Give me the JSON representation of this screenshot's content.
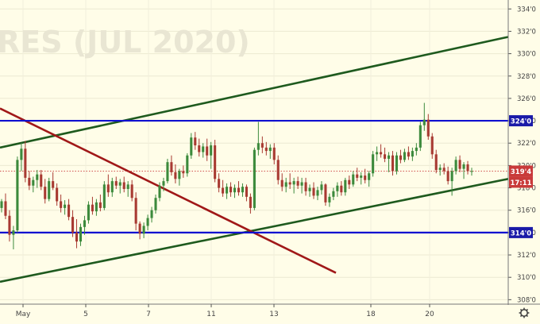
{
  "watermark": "RES (JUL 2020)",
  "price_axis": {
    "ticks": [
      "334'0",
      "332'0",
      "330'0",
      "328'0",
      "326'0",
      "324'0",
      "322'0",
      "320'0",
      "318'0",
      "316'0",
      "314'0",
      "312'0",
      "310'0",
      "308'0"
    ],
    "badges": {
      "resistance": "324'0",
      "last_price": "319'4",
      "countdown": "17:11",
      "support": "314'0"
    }
  },
  "time_axis": {
    "ticks": [
      "May",
      "5",
      "7",
      "11",
      "13",
      "18",
      "20"
    ]
  },
  "colors": {
    "background": "#fffde8",
    "up_candle": "#3c8a3c",
    "down_candle": "#a83a32",
    "horizontal_level": "#1010d0",
    "channel_line": "#1e5a1e",
    "downtrend_line": "#a01818",
    "last_price_badge": "#c93a3a",
    "level_badge": "#1a1aa8"
  },
  "chart_data": {
    "type": "candlestick",
    "title": "RES (JUL 2020)",
    "ylim": [
      307.6,
      334.8
    ],
    "x": [
      "May",
      "5",
      "7",
      "11",
      "13",
      "18",
      "20"
    ],
    "horizontal_levels": [
      324.0,
      314.0
    ],
    "last_price": 319.5,
    "trend_lines": [
      {
        "name": "channel-upper",
        "from": [
          "before May",
          321.6
        ],
        "to": [
          "after 20",
          331.5
        ]
      },
      {
        "name": "channel-lower",
        "from": [
          "before May",
          309.6
        ],
        "to": [
          "after 20",
          318.8
        ]
      },
      {
        "name": "downtrend",
        "from": [
          "before May",
          325.1
        ],
        "to": [
          "between 18 and 13",
          310.4
        ]
      }
    ],
    "candles": [
      [
        316.2,
        317.0,
        315.8,
        316.8
      ],
      [
        316.8,
        317.5,
        315.2,
        315.5
      ],
      [
        315.5,
        316.0,
        313.2,
        313.8
      ],
      [
        313.8,
        314.6,
        312.5,
        314.2
      ],
      [
        314.2,
        320.8,
        314.0,
        320.5
      ],
      [
        320.5,
        322.0,
        319.5,
        321.5
      ],
      [
        321.5,
        322.2,
        318.5,
        318.9
      ],
      [
        318.9,
        319.5,
        317.8,
        318.2
      ],
      [
        318.2,
        319.0,
        317.6,
        318.7
      ],
      [
        318.7,
        319.6,
        318.0,
        319.2
      ],
      [
        319.2,
        319.6,
        317.8,
        318.1
      ],
      [
        318.1,
        318.8,
        316.6,
        317.0
      ],
      [
        317.0,
        318.9,
        316.8,
        318.6
      ],
      [
        318.6,
        319.4,
        317.8,
        318.0
      ],
      [
        318.0,
        318.4,
        316.4,
        316.8
      ],
      [
        316.8,
        317.4,
        315.8,
        316.2
      ],
      [
        316.2,
        316.9,
        315.6,
        316.5
      ],
      [
        316.5,
        317.0,
        315.1,
        315.4
      ],
      [
        315.4,
        316.0,
        313.6,
        314.0
      ],
      [
        314.0,
        315.2,
        312.6,
        313.2
      ],
      [
        313.2,
        314.8,
        312.8,
        314.5
      ],
      [
        314.5,
        315.5,
        313.8,
        315.1
      ],
      [
        315.1,
        316.8,
        314.8,
        316.5
      ],
      [
        316.5,
        317.2,
        315.6,
        315.9
      ],
      [
        315.9,
        317.0,
        315.5,
        316.7
      ],
      [
        316.7,
        317.4,
        315.9,
        316.2
      ],
      [
        316.2,
        318.6,
        316.0,
        318.3
      ],
      [
        318.3,
        319.2,
        317.2,
        317.6
      ],
      [
        317.6,
        318.9,
        317.2,
        318.6
      ],
      [
        318.6,
        319.0,
        317.9,
        318.2
      ],
      [
        318.2,
        318.8,
        317.5,
        318.5
      ],
      [
        318.5,
        319.0,
        317.6,
        317.9
      ],
      [
        317.9,
        318.6,
        317.2,
        318.3
      ],
      [
        318.3,
        318.7,
        316.8,
        317.1
      ],
      [
        317.1,
        317.6,
        314.2,
        314.8
      ],
      [
        314.8,
        315.0,
        313.4,
        313.9
      ],
      [
        313.9,
        314.9,
        313.5,
        314.6
      ],
      [
        314.6,
        315.6,
        314.2,
        315.3
      ],
      [
        315.3,
        316.3,
        314.9,
        316.0
      ],
      [
        316.0,
        317.4,
        315.7,
        317.1
      ],
      [
        317.1,
        318.5,
        316.8,
        318.2
      ],
      [
        318.2,
        318.9,
        317.7,
        318.6
      ],
      [
        318.6,
        320.6,
        318.4,
        320.3
      ],
      [
        320.3,
        320.9,
        319.1,
        319.4
      ],
      [
        319.4,
        320.1,
        318.4,
        318.8
      ],
      [
        318.8,
        319.7,
        318.2,
        319.5
      ],
      [
        319.5,
        320.0,
        318.9,
        319.3
      ],
      [
        319.3,
        321.1,
        319.0,
        320.9
      ],
      [
        320.9,
        322.9,
        320.6,
        322.5
      ],
      [
        322.5,
        323.0,
        321.4,
        321.8
      ],
      [
        321.8,
        322.4,
        320.8,
        321.2
      ],
      [
        321.2,
        322.0,
        320.7,
        321.7
      ],
      [
        321.7,
        322.4,
        320.4,
        320.9
      ],
      [
        320.9,
        322.1,
        319.7,
        321.8
      ],
      [
        321.8,
        322.3,
        318.5,
        318.8
      ],
      [
        318.8,
        319.3,
        317.6,
        318.0
      ],
      [
        318.0,
        318.7,
        317.2,
        317.5
      ],
      [
        317.5,
        318.4,
        317.0,
        318.1
      ],
      [
        318.1,
        318.5,
        317.2,
        317.6
      ],
      [
        317.6,
        318.3,
        317.1,
        318.0
      ],
      [
        318.0,
        318.6,
        317.3,
        317.6
      ],
      [
        317.6,
        318.4,
        317.2,
        318.1
      ],
      [
        318.1,
        318.3,
        316.8,
        317.2
      ],
      [
        317.2,
        317.5,
        315.7,
        316.2
      ],
      [
        316.2,
        321.6,
        316.0,
        321.4
      ],
      [
        321.4,
        323.9,
        320.9,
        322.0
      ],
      [
        322.0,
        322.6,
        321.1,
        321.6
      ],
      [
        321.6,
        322.1,
        320.9,
        321.3
      ],
      [
        321.3,
        321.9,
        320.6,
        321.6
      ],
      [
        321.6,
        322.0,
        320.1,
        320.5
      ],
      [
        320.5,
        320.9,
        318.3,
        318.7
      ],
      [
        318.7,
        319.3,
        317.7,
        318.1
      ],
      [
        318.1,
        318.9,
        317.6,
        318.5
      ],
      [
        318.5,
        319.3,
        317.9,
        318.3
      ],
      [
        318.3,
        318.9,
        317.5,
        318.6
      ],
      [
        318.6,
        319.0,
        317.9,
        318.2
      ],
      [
        318.2,
        318.9,
        317.5,
        318.5
      ],
      [
        318.5,
        318.9,
        317.3,
        317.7
      ],
      [
        317.7,
        318.3,
        317.2,
        318.0
      ],
      [
        318.0,
        318.5,
        317.0,
        317.3
      ],
      [
        317.3,
        318.1,
        316.9,
        317.8
      ],
      [
        317.8,
        318.6,
        317.4,
        318.3
      ],
      [
        318.3,
        318.4,
        316.4,
        316.7
      ],
      [
        316.7,
        317.5,
        316.3,
        317.2
      ],
      [
        317.2,
        318.0,
        316.9,
        317.7
      ],
      [
        317.7,
        318.5,
        317.2,
        318.2
      ],
      [
        318.2,
        318.6,
        317.3,
        317.6
      ],
      [
        317.6,
        318.9,
        317.3,
        318.7
      ],
      [
        318.7,
        319.1,
        317.9,
        318.3
      ],
      [
        318.3,
        319.5,
        318.1,
        319.2
      ],
      [
        319.2,
        319.8,
        318.6,
        318.9
      ],
      [
        318.9,
        319.4,
        318.3,
        319.1
      ],
      [
        319.1,
        319.7,
        318.4,
        318.7
      ],
      [
        318.7,
        319.5,
        318.1,
        319.3
      ],
      [
        319.3,
        321.3,
        319.0,
        321.0
      ],
      [
        321.0,
        321.7,
        320.4,
        321.2
      ],
      [
        321.2,
        321.9,
        320.7,
        321.0
      ],
      [
        321.0,
        321.6,
        320.3,
        320.6
      ],
      [
        320.6,
        321.2,
        319.4,
        320.9
      ],
      [
        320.9,
        321.3,
        319.1,
        319.5
      ],
      [
        319.5,
        321.2,
        319.2,
        320.9
      ],
      [
        320.9,
        321.4,
        320.2,
        320.5
      ],
      [
        320.5,
        321.5,
        320.3,
        321.2
      ],
      [
        321.2,
        321.7,
        320.5,
        320.8
      ],
      [
        320.8,
        321.6,
        320.4,
        321.3
      ],
      [
        321.3,
        322.0,
        320.9,
        321.6
      ],
      [
        321.6,
        323.9,
        321.3,
        323.6
      ],
      [
        323.6,
        325.6,
        323.1,
        324.1
      ],
      [
        324.1,
        324.6,
        322.3,
        322.6
      ],
      [
        322.6,
        322.9,
        320.6,
        321.0
      ],
      [
        321.0,
        321.4,
        319.3,
        319.6
      ],
      [
        319.6,
        320.1,
        319.1,
        319.8
      ],
      [
        319.8,
        320.2,
        319.2,
        319.5
      ],
      [
        319.5,
        319.9,
        318.3,
        318.6
      ],
      [
        318.6,
        319.8,
        317.3,
        319.5
      ],
      [
        319.5,
        320.8,
        319.2,
        320.5
      ],
      [
        320.5,
        320.9,
        319.4,
        319.7
      ],
      [
        319.7,
        320.3,
        318.8,
        320.1
      ],
      [
        320.1,
        320.4,
        319.2,
        319.5
      ],
      [
        319.5,
        319.8,
        319.1,
        319.5
      ]
    ]
  }
}
